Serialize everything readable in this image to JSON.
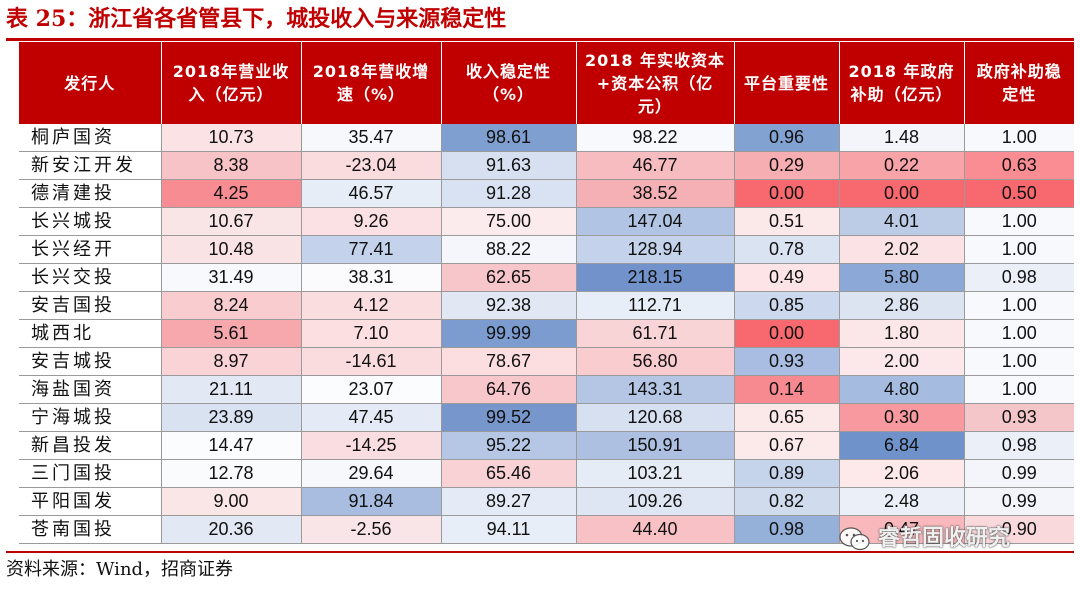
{
  "title": "表 25：浙江省各省管县下，城投收入与来源稳定性",
  "headers": [
    "发行人",
    "2018年营业收入（亿元）",
    "2018年营收增速（%）",
    "收入稳定性（%）",
    "2018 年实收资本+资本公积（亿元）",
    "平台重要性",
    "2018 年政府补助（亿元）",
    "政府补助稳定性"
  ],
  "rows": [
    {
      "name": "桐庐国资",
      "values": [
        "10.73",
        "35.47",
        "98.61",
        "98.22",
        "0.96",
        "1.48",
        "1.00"
      ]
    },
    {
      "name": "新安江开发",
      "values": [
        "8.38",
        "-23.04",
        "91.63",
        "46.77",
        "0.29",
        "0.22",
        "0.63"
      ]
    },
    {
      "name": "德清建投",
      "values": [
        "4.25",
        "46.57",
        "91.28",
        "38.52",
        "0.00",
        "0.00",
        "0.50"
      ]
    },
    {
      "name": "长兴城投",
      "values": [
        "10.67",
        "9.26",
        "75.00",
        "147.04",
        "0.51",
        "4.01",
        "1.00"
      ]
    },
    {
      "name": "长兴经开",
      "values": [
        "10.48",
        "77.41",
        "88.22",
        "128.94",
        "0.78",
        "2.02",
        "1.00"
      ]
    },
    {
      "name": "长兴交投",
      "values": [
        "31.49",
        "38.31",
        "62.65",
        "218.15",
        "0.49",
        "5.80",
        "0.98"
      ]
    },
    {
      "name": "安吉国投",
      "values": [
        "8.24",
        "4.12",
        "92.38",
        "112.71",
        "0.85",
        "2.86",
        "1.00"
      ]
    },
    {
      "name": "城西北",
      "values": [
        "5.61",
        "7.10",
        "99.99",
        "61.71",
        "0.00",
        "1.80",
        "1.00"
      ]
    },
    {
      "name": "安吉城投",
      "values": [
        "8.97",
        "-14.61",
        "78.67",
        "56.80",
        "0.93",
        "2.00",
        "1.00"
      ]
    },
    {
      "name": "海盐国资",
      "values": [
        "21.11",
        "23.07",
        "64.76",
        "143.31",
        "0.14",
        "4.80",
        "1.00"
      ]
    },
    {
      "name": "宁海城投",
      "values": [
        "23.89",
        "47.45",
        "99.52",
        "120.68",
        "0.65",
        "0.30",
        "0.93"
      ]
    },
    {
      "name": "新昌投发",
      "values": [
        "14.47",
        "-14.25",
        "95.22",
        "150.91",
        "0.67",
        "6.84",
        "0.98"
      ]
    },
    {
      "name": "三门国投",
      "values": [
        "12.78",
        "29.64",
        "65.46",
        "103.21",
        "0.89",
        "2.06",
        "0.99"
      ]
    },
    {
      "name": "平阳国发",
      "values": [
        "9.00",
        "91.84",
        "89.27",
        "109.26",
        "0.82",
        "2.48",
        "0.99"
      ]
    },
    {
      "name": "苍南国投",
      "values": [
        "20.36",
        "-2.56",
        "94.11",
        "44.40",
        "0.98",
        "0.47",
        "0.90"
      ]
    }
  ],
  "cell_colors": [
    [
      "#fbe3e5",
      "#f6f8fc",
      "#7f9fd0",
      "#f8f9fc",
      "#82a2d2",
      "#f3f5fb",
      "#f8f9fc"
    ],
    [
      "#f8c3c7",
      "#fadbde",
      "#d7e0f1",
      "#f6bcc0",
      "#f6aeb3",
      "#f8a3a8",
      "#f98d93"
    ],
    [
      "#f78c92",
      "#e7edf7",
      "#d9e2f2",
      "#f5b0b5",
      "#f8696f",
      "#f8696f",
      "#f8696f"
    ],
    [
      "#f9e4e6",
      "#fbe1e3",
      "#fcebec",
      "#b1c4e4",
      "#fbe8e9",
      "#bccbe6",
      "#f8f9fc"
    ],
    [
      "#fae3e5",
      "#c4d2eb",
      "#f4f6fb",
      "#c4d2eb",
      "#dae3f1",
      "#fbe3e5",
      "#f8f9fc"
    ],
    [
      "#f8f9fc",
      "#fbfbfd",
      "#f6c6ca",
      "#7192cb",
      "#fde5e7",
      "#8ba8d6",
      "#eaeff8"
    ],
    [
      "#f9cdd0",
      "#fadddf",
      "#e1e8f4",
      "#e8eef7",
      "#ccd8ed",
      "#dce4f2",
      "#f8f9fc"
    ],
    [
      "#f6a8ad",
      "#fbdfe1",
      "#7c9ccf",
      "#f9d4d7",
      "#f8696f",
      "#fce7e8",
      "#f8f9fc"
    ],
    [
      "#fad3d6",
      "#fadcdf",
      "#fcdde0",
      "#f9cdd0",
      "#a8bde1",
      "#fce8ea",
      "#f8f9fc"
    ],
    [
      "#e2e8f4",
      "#fbfcfe",
      "#f7c7cb",
      "#b5c6e5",
      "#f78a90",
      "#a5bbe0",
      "#f8f9fc"
    ],
    [
      "#d9e2f1",
      "#e5ebf6",
      "#7796cc",
      "#d7e0f1",
      "#fbe8e9",
      "#f7999f",
      "#f5c6c9"
    ],
    [
      "#fbfcfe",
      "#fadde0",
      "#b6c7e5",
      "#adc0e2",
      "#fceaeb",
      "#6f92cb",
      "#eaeff8"
    ],
    [
      "#fafbfd",
      "#f6f8fc",
      "#f8d2d5",
      "#e6ecf6",
      "#c5d3eb",
      "#fde9ea",
      "#f3f5fb"
    ],
    [
      "#fae6e7",
      "#a9bde1",
      "#e5ebf6",
      "#dee6f3",
      "#d0dbee",
      "#ebf0f8",
      "#f3f5fb"
    ],
    [
      "#e2e8f4",
      "#f9e5e7",
      "#e8eef7",
      "#f8c1c5",
      "#95b0d9",
      "#f8b8bc",
      "#f9d9dc"
    ]
  ],
  "source": "资料来源：Wind，招商证券",
  "watermark": "睿哲固收研究",
  "watermark_icon": "wechat-icon",
  "colors": {
    "accent_red": "#c00000",
    "header_text": "#ffffff"
  }
}
